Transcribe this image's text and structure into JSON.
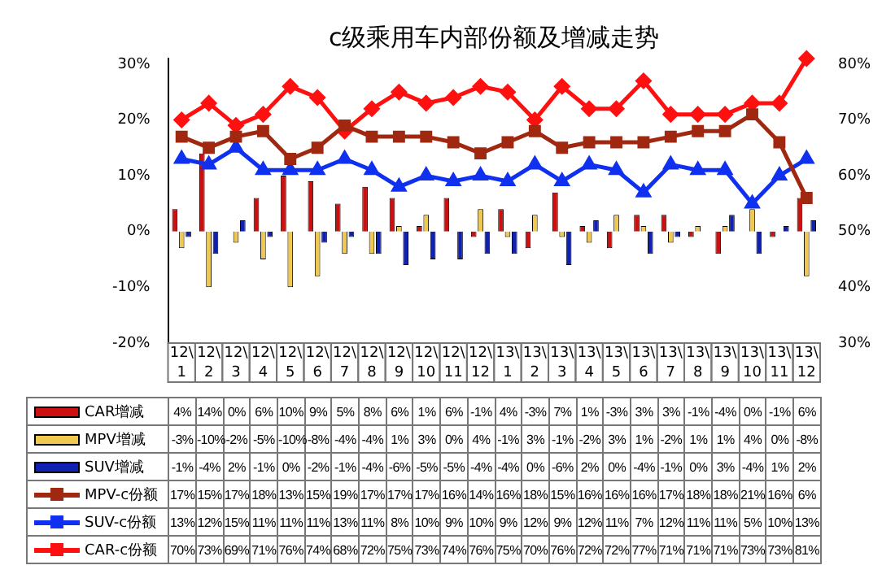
{
  "chart_data": {
    "type": "bar",
    "title": "c级乘用车内部份额及增减走势",
    "categories": [
      "12\\1",
      "12\\2",
      "12\\3",
      "12\\4",
      "12\\5",
      "12\\6",
      "12\\7",
      "12\\8",
      "12\\9",
      "12\\10",
      "12\\11",
      "12\\12",
      "13\\1",
      "13\\2",
      "13\\3",
      "13\\4",
      "13\\5",
      "13\\6",
      "13\\7",
      "13\\8",
      "13\\9",
      "13\\10",
      "13\\11",
      "13\\12"
    ],
    "ylim": [
      -20,
      31
    ],
    "yticks": [
      {
        "value": -20,
        "label": "-20%"
      },
      {
        "value": -10,
        "label": "-10%"
      },
      {
        "value": 0,
        "label": "0%"
      },
      {
        "value": 10,
        "label": "10%"
      },
      {
        "value": 20,
        "label": "20%"
      },
      {
        "value": 30,
        "label": "30%"
      }
    ],
    "y2lim": [
      30,
      81
    ],
    "y2ticks": [
      {
        "value": 30,
        "label": "30%"
      },
      {
        "value": 40,
        "label": "40%"
      },
      {
        "value": 50,
        "label": "50%"
      },
      {
        "value": 60,
        "label": "60%"
      },
      {
        "value": 70,
        "label": "70%"
      },
      {
        "value": 80,
        "label": "80%"
      }
    ],
    "legend": "bottom",
    "data_labels": true,
    "series": [
      {
        "name": "CAR增减",
        "color": "#cc1010",
        "values": [
          4,
          14,
          0,
          6,
          10,
          9,
          5,
          8,
          6,
          1,
          6,
          -1,
          4,
          -3,
          7,
          1,
          -3,
          3,
          3,
          -1,
          -4,
          0,
          -1,
          6
        ],
        "value_labels": [
          "4%",
          "14%",
          "0%",
          "6%",
          "10%",
          "9%",
          "5%",
          "8%",
          "6%",
          "1%",
          "6%",
          "-1%",
          "4%",
          "-3%",
          "7%",
          "1%",
          "-3%",
          "3%",
          "3%",
          "-1%",
          "-4%",
          "0%",
          "-1%",
          "6%"
        ]
      },
      {
        "name": "MPV增减",
        "color": "#f0c850",
        "values": [
          -3,
          -10,
          -2,
          -5,
          -10,
          -8,
          -4,
          -4,
          1,
          3,
          0,
          4,
          -1,
          3,
          -1,
          -2,
          3,
          1,
          -2,
          1,
          1,
          4,
          0,
          -8
        ],
        "value_labels": [
          "-3%",
          "-10%",
          "-2%",
          "-5%",
          "-10%",
          "-8%",
          "-4%",
          "-4%",
          "1%",
          "3%",
          "0%",
          "4%",
          "-1%",
          "3%",
          "-1%",
          "-2%",
          "3%",
          "1%",
          "-2%",
          "1%",
          "1%",
          "4%",
          "0%",
          "-8%"
        ]
      },
      {
        "name": "SUV增减",
        "color": "#1020b0",
        "values": [
          -1,
          -4,
          2,
          -1,
          0,
          -2,
          -1,
          -4,
          -6,
          -5,
          -5,
          -4,
          -4,
          0,
          -6,
          2,
          0,
          -4,
          -1,
          0,
          3,
          -4,
          1,
          2
        ],
        "value_labels": [
          "-1%",
          "-4%",
          "2%",
          "-1%",
          "0%",
          "-2%",
          "-1%",
          "-4%",
          "-6%",
          "-5%",
          "-5%",
          "-4%",
          "-4%",
          "0%",
          "-6%",
          "2%",
          "0%",
          "-4%",
          "-1%",
          "0%",
          "3%",
          "-4%",
          "1%",
          "2%"
        ]
      },
      {
        "name": "MPV-c份额",
        "type": "line",
        "marker": "square",
        "color": "#a02810",
        "values": [
          17,
          15,
          17,
          18,
          13,
          15,
          19,
          17,
          17,
          17,
          16,
          14,
          16,
          18,
          15,
          16,
          16,
          16,
          17,
          18,
          18,
          21,
          16,
          6
        ],
        "value_labels": [
          "17%",
          "15%",
          "17%",
          "18%",
          "13%",
          "15%",
          "19%",
          "17%",
          "17%",
          "17%",
          "16%",
          "14%",
          "16%",
          "18%",
          "15%",
          "16%",
          "16%",
          "16%",
          "17%",
          "18%",
          "18%",
          "21%",
          "16%",
          "6%"
        ]
      },
      {
        "name": "SUV-c份额",
        "type": "line",
        "marker": "triangle",
        "color": "#1030f0",
        "values": [
          13,
          12,
          15,
          11,
          11,
          11,
          13,
          11,
          8,
          10,
          9,
          10,
          9,
          12,
          9,
          12,
          11,
          7,
          12,
          11,
          11,
          5,
          10,
          13
        ],
        "value_labels": [
          "13%",
          "12%",
          "15%",
          "11%",
          "11%",
          "11%",
          "13%",
          "11%",
          "8%",
          "10%",
          "9%",
          "10%",
          "9%",
          "12%",
          "9%",
          "12%",
          "11%",
          "7%",
          "12%",
          "11%",
          "11%",
          "5%",
          "10%",
          "13%"
        ]
      },
      {
        "name": "CAR-c份额",
        "type": "line",
        "axis": "y2",
        "marker": "diamond",
        "color": "#ff1010",
        "values": [
          70,
          73,
          69,
          71,
          76,
          74,
          68,
          72,
          75,
          73,
          74,
          76,
          75,
          70,
          76,
          72,
          72,
          77,
          71,
          71,
          71,
          73,
          73,
          81
        ],
        "value_labels": [
          "70%",
          "73%",
          "69%",
          "71%",
          "76%",
          "74%",
          "68%",
          "72%",
          "75%",
          "73%",
          "74%",
          "76%",
          "75%",
          "70%",
          "76%",
          "72%",
          "72%",
          "77%",
          "71%",
          "71%",
          "71%",
          "73%",
          "73%",
          "81%"
        ]
      }
    ]
  }
}
